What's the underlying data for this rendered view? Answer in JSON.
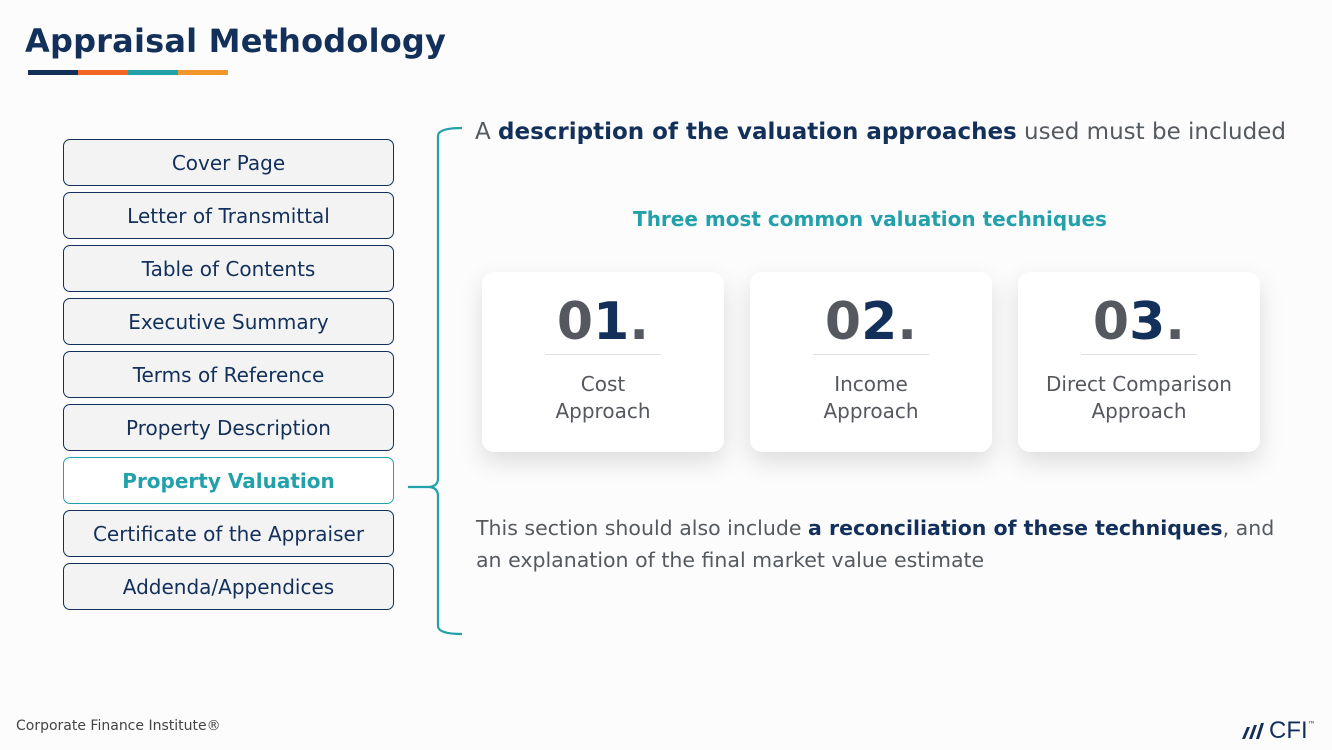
{
  "header": {
    "title": "Appraisal Methodology",
    "underline_colors": [
      "#13305a",
      "#f26522",
      "#23a1ab",
      "#f0962c"
    ]
  },
  "nav": {
    "items": [
      {
        "label": "Cover Page",
        "active": false
      },
      {
        "label": "Letter of Transmittal",
        "active": false
      },
      {
        "label": "Table of Contents",
        "active": false
      },
      {
        "label": "Executive Summary",
        "active": false
      },
      {
        "label": "Terms of Reference",
        "active": false
      },
      {
        "label": "Property Description",
        "active": false
      },
      {
        "label": "Property Valuation",
        "active": true
      },
      {
        "label": "Certificate of the Appraiser",
        "active": false
      },
      {
        "label": "Addenda/Appendices",
        "active": false
      }
    ]
  },
  "content": {
    "intro": {
      "pre": "A ",
      "bold": "description of the valuation approaches",
      "post": " used must be included"
    },
    "subhead": "Three most common valuation techniques",
    "cards": [
      {
        "num_a": "0",
        "num_b": "1",
        "dot": ".",
        "line1": "Cost",
        "line2": "Approach"
      },
      {
        "num_a": "0",
        "num_b": "2",
        "dot": ".",
        "line1": "Income",
        "line2": "Approach"
      },
      {
        "num_a": "0",
        "num_b": "3",
        "dot": ".",
        "line1": "Direct Comparison",
        "line2": "Approach"
      }
    ],
    "outro": {
      "pre": "This section should also include ",
      "bold": "a reconciliation of these techniques",
      "post": ", and an explanation of the final market value estimate"
    }
  },
  "footer": {
    "text": "Corporate Finance Institute®",
    "logo": "CFI",
    "tm": "™"
  },
  "colors": {
    "navy": "#13305a",
    "teal": "#23a1ab",
    "gray": "#55585e"
  }
}
